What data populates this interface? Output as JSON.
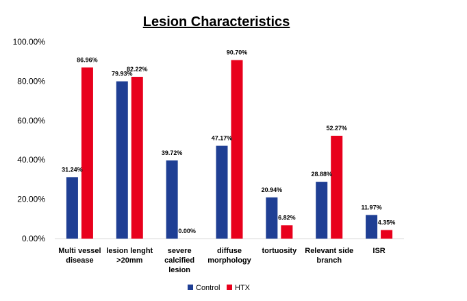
{
  "chart_data": {
    "type": "bar",
    "title": "Lesion Characteristics",
    "xlabel": "",
    "ylabel": "",
    "ylim": [
      0,
      100
    ],
    "yticks": [
      "0.00%",
      "20.00%",
      "40.00%",
      "60.00%",
      "80.00%",
      "100.00%"
    ],
    "grid": false,
    "legend_position": "bottom-center",
    "categories": [
      [
        "Multi vessel",
        "disease"
      ],
      [
        "lesion lenght",
        ">20mm"
      ],
      [
        "severe",
        "calcified",
        "lesion"
      ],
      [
        "diffuse",
        "morphology"
      ],
      [
        "tortuosity"
      ],
      [
        "Relevant side",
        "branch"
      ],
      [
        "ISR"
      ]
    ],
    "series": [
      {
        "name": "Control",
        "color": "#1f3f94",
        "values": [
          31.24,
          79.93,
          39.72,
          47.17,
          20.94,
          28.88,
          11.97
        ],
        "labels": [
          "31.24%",
          "79.93%",
          "39.72%",
          "47.17%",
          "20.94%",
          "28.88%",
          "11.97%"
        ]
      },
      {
        "name": "HTX",
        "color": "#e8001c",
        "values": [
          86.96,
          82.22,
          0.0,
          90.7,
          6.82,
          52.27,
          4.35
        ],
        "labels": [
          "86.96%",
          "82.22%",
          "0.00%",
          "90.70%",
          "6.82%",
          "52.27%",
          "4.35%"
        ]
      }
    ]
  }
}
